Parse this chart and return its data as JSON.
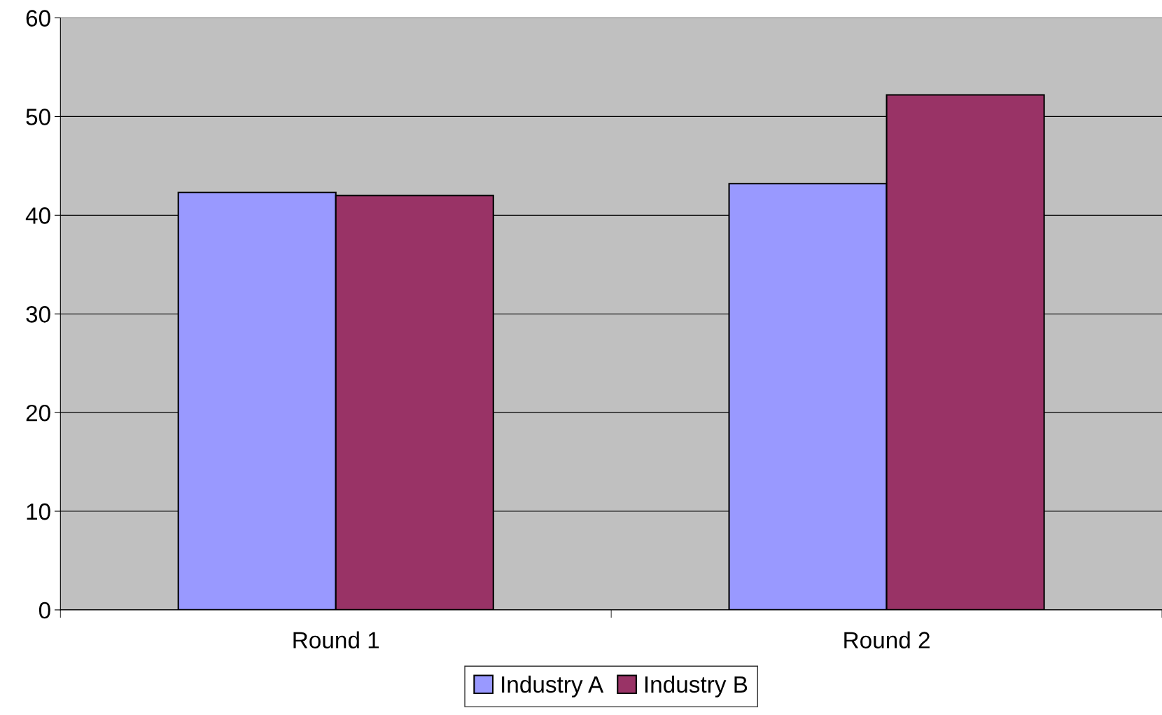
{
  "chart_data": {
    "type": "bar",
    "categories": [
      "Round 1",
      "Round 2"
    ],
    "series": [
      {
        "name": "Industry A",
        "color": "#9999ff",
        "values": [
          42.3,
          43.2
        ]
      },
      {
        "name": "Industry B",
        "color": "#993366",
        "values": [
          42.0,
          52.2
        ]
      }
    ],
    "ylim": [
      0,
      60
    ],
    "yticks": [
      0,
      10,
      20,
      30,
      40,
      50,
      60
    ],
    "grid": "y",
    "legend": "bottom"
  }
}
